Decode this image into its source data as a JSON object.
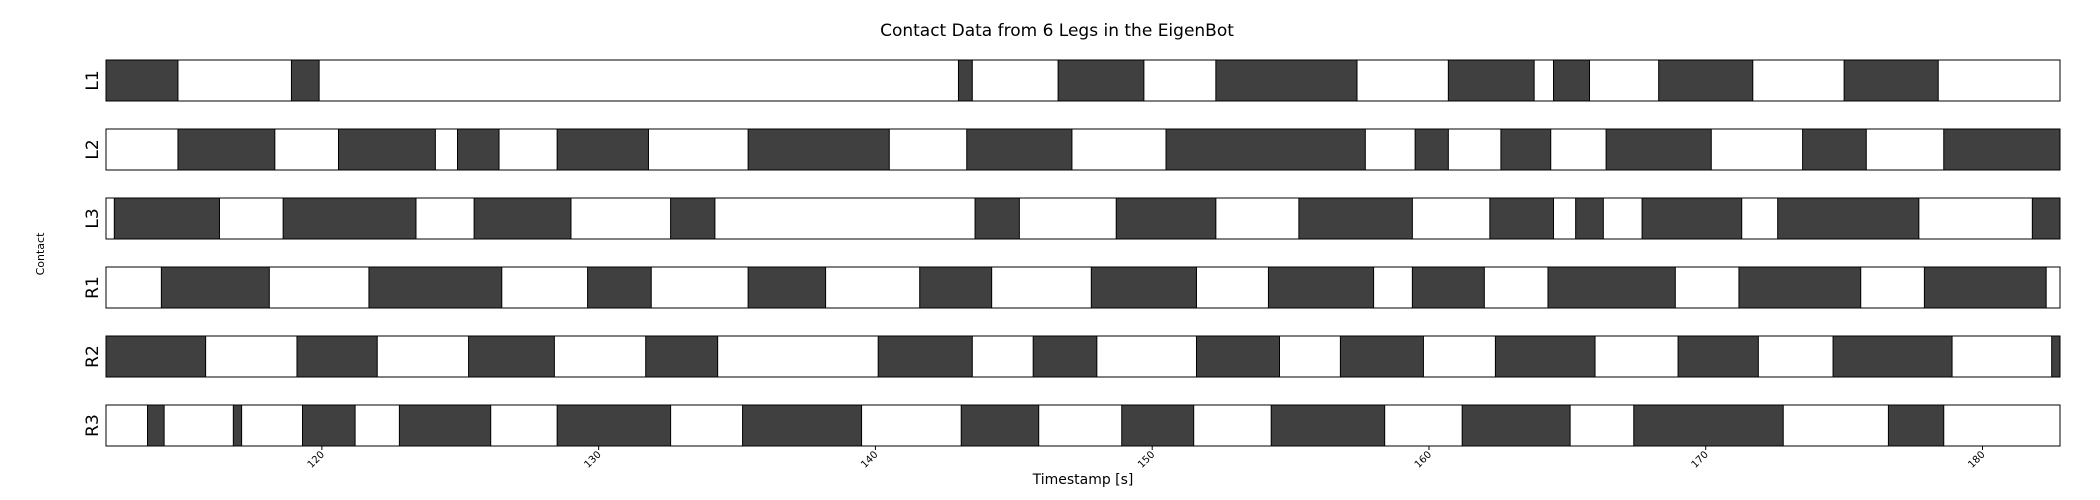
{
  "chart_data": {
    "type": "gantt",
    "title": "Contact Data from 6 Legs in the EigenBot",
    "xlabel": "Timestamp [s]",
    "ylabel": "Contact",
    "xlim": [
      112.2,
      182.8
    ],
    "xticks": [
      "120",
      "130",
      "140",
      "150",
      "160",
      "170",
      "180"
    ],
    "colors": {
      "contact": "#404040",
      "swing": "#ffffff",
      "edge": "#000000"
    },
    "legs": [
      {
        "name": "L1",
        "contact": [
          [
            112.2,
            114.8
          ],
          [
            118.9,
            119.9
          ],
          [
            143.0,
            143.5
          ],
          [
            146.6,
            149.7
          ],
          [
            152.3,
            157.4
          ],
          [
            160.7,
            163.8
          ],
          [
            164.5,
            165.8
          ],
          [
            168.3,
            171.7
          ],
          [
            175.0,
            178.4
          ]
        ]
      },
      {
        "name": "L2",
        "contact": [
          [
            114.8,
            118.3
          ],
          [
            120.6,
            124.1
          ],
          [
            124.9,
            126.4
          ],
          [
            128.5,
            131.8
          ],
          [
            135.4,
            140.5
          ],
          [
            143.3,
            147.1
          ],
          [
            150.5,
            157.7
          ],
          [
            159.5,
            160.7
          ],
          [
            162.6,
            164.4
          ],
          [
            166.4,
            170.2
          ],
          [
            173.5,
            175.8
          ],
          [
            178.6,
            182.8
          ]
        ]
      },
      {
        "name": "L3",
        "contact": [
          [
            112.5,
            116.3
          ],
          [
            118.6,
            123.4
          ],
          [
            125.5,
            129.0
          ],
          [
            132.6,
            134.2
          ],
          [
            143.6,
            145.2
          ],
          [
            148.7,
            152.3
          ],
          [
            155.3,
            159.4
          ],
          [
            162.2,
            164.5
          ],
          [
            165.3,
            166.3
          ],
          [
            167.7,
            171.3
          ],
          [
            172.6,
            177.7
          ],
          [
            181.8,
            182.8
          ]
        ]
      },
      {
        "name": "R1",
        "contact": [
          [
            114.2,
            118.1
          ],
          [
            121.7,
            126.5
          ],
          [
            129.6,
            131.9
          ],
          [
            135.4,
            138.2
          ],
          [
            141.6,
            144.2
          ],
          [
            147.8,
            151.6
          ],
          [
            154.2,
            158.0
          ],
          [
            159.4,
            162.0
          ],
          [
            164.3,
            168.9
          ],
          [
            171.2,
            175.6
          ],
          [
            177.9,
            182.3
          ]
        ]
      },
      {
        "name": "R2",
        "contact": [
          [
            112.2,
            115.8
          ],
          [
            119.1,
            122.0
          ],
          [
            125.3,
            128.4
          ],
          [
            131.7,
            134.3
          ],
          [
            140.1,
            143.5
          ],
          [
            145.7,
            148.0
          ],
          [
            151.6,
            154.6
          ],
          [
            156.8,
            159.8
          ],
          [
            162.4,
            166.0
          ],
          [
            169.0,
            171.9
          ],
          [
            174.6,
            178.9
          ],
          [
            182.5,
            182.8
          ]
        ]
      },
      {
        "name": "R3",
        "contact": [
          [
            113.7,
            114.3
          ],
          [
            116.8,
            117.1
          ],
          [
            119.3,
            121.2
          ],
          [
            122.8,
            126.1
          ],
          [
            128.5,
            132.6
          ],
          [
            135.2,
            139.5
          ],
          [
            143.1,
            145.9
          ],
          [
            148.9,
            151.5
          ],
          [
            154.3,
            158.4
          ],
          [
            161.2,
            165.1
          ],
          [
            167.4,
            172.8
          ],
          [
            176.6,
            178.6
          ]
        ]
      }
    ]
  }
}
